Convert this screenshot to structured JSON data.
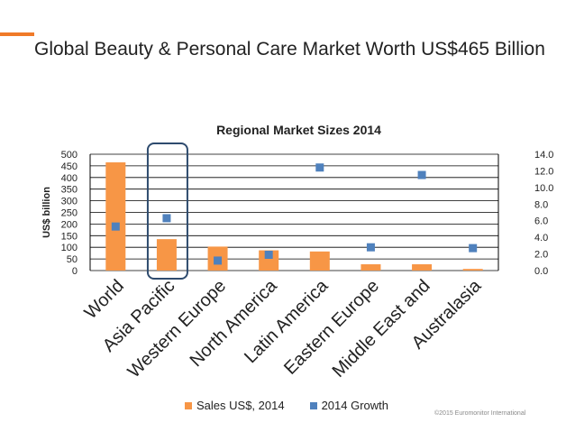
{
  "slide": {
    "title": "Global Beauty & Personal Care Market Worth US$465 Billion",
    "copyright": "©2015 Euromonitor International"
  },
  "colors": {
    "accent": "#f07a28",
    "bar": "#f79646",
    "marker": "#4f81bd",
    "highlight": "#2e4b6e"
  },
  "chart_data": {
    "type": "bar",
    "title": "Regional Market Sizes 2014",
    "ylabel": "US$ billion",
    "ylabel_right": "",
    "categories": [
      "World",
      "Asia Pacific",
      "Western Europe",
      "North America",
      "Latin America",
      "Eastern Europe",
      "Middle East and",
      "Australasia"
    ],
    "series": [
      {
        "name": "Sales US$, 2014",
        "type": "bar",
        "axis": "left",
        "values": [
          465,
          135,
          103,
          87,
          82,
          27,
          27,
          7
        ]
      },
      {
        "name": "2014 Growth",
        "type": "scatter",
        "axis": "right",
        "values": [
          5.3,
          6.3,
          1.2,
          1.9,
          12.4,
          2.8,
          11.5,
          2.7
        ]
      }
    ],
    "ylim": [
      0,
      500
    ],
    "y_ticks": [
      "500",
      "450",
      "400",
      "350",
      "300",
      "250",
      "200",
      "150",
      "100",
      "50",
      "0"
    ],
    "ylim_right": [
      0,
      14
    ],
    "y2_ticks": [
      "14.0",
      "12.0",
      "10.0",
      "8.0",
      "6.0",
      "4.0",
      "2.0",
      "0.0"
    ],
    "highlighted_category": "Asia Pacific",
    "grid": true,
    "legend": "bottom"
  }
}
